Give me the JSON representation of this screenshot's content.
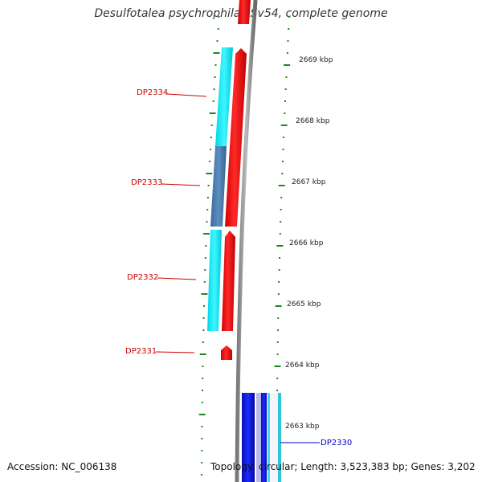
{
  "title": "Desulfotalea psychrophila LSv54, complete genome",
  "accession": "Accession: NC_006138",
  "topology": "Topology: circular; Length: 3,523,383 bp; Genes: 3,202",
  "ruler_labels": [
    "2669 kbp",
    "2668 kbp",
    "2667 kbp",
    "2666 kbp",
    "2665 kbp",
    "2664 kbp",
    "2663 kbp"
  ],
  "genes": [
    {
      "label": "DP2334",
      "strand": "minus"
    },
    {
      "label": "DP2333",
      "strand": "minus"
    },
    {
      "label": "DP2332",
      "strand": "minus"
    },
    {
      "label": "DP2331",
      "strand": "minus"
    },
    {
      "label": "DP2330",
      "strand": "plus"
    }
  ],
  "colors": {
    "minus_label": "#cc0000",
    "plus_label": "#0000cc",
    "cds_red": "#ff0000",
    "cyan": "#00e5ee",
    "steel_blue": "#4a7fb0",
    "blue": "#0a14d8",
    "backbone": "#888888",
    "ticks": "#1a8a1a"
  }
}
